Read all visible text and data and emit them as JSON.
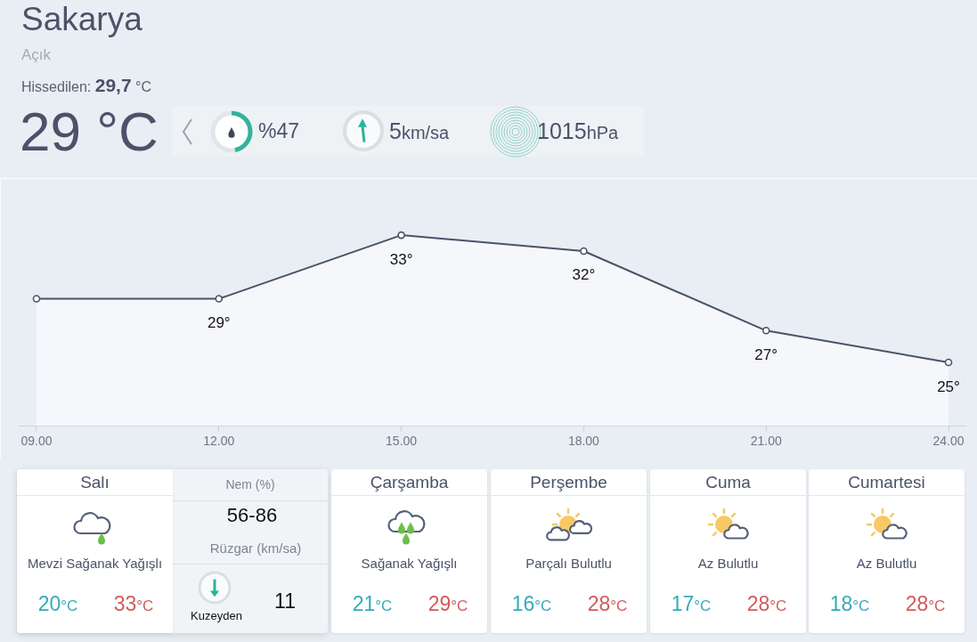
{
  "chart_data": [
    {
      "type": "other",
      "title": "Sakarya",
      "subtitle": "Açık",
      "annotations": [
        "Hissedilen:",
        "29,7",
        "°C",
        "29 °C",
        "%47",
        "5",
        "km/sa",
        "1015",
        "hPa"
      ]
    },
    {
      "type": "area",
      "x": [
        9,
        12,
        15,
        18,
        21,
        24
      ],
      "values": [
        29,
        29,
        33,
        32,
        27,
        25
      ],
      "color": "#4b5269",
      "marker": "circle",
      "value_labels": [
        null,
        "29°",
        "33°",
        "32°",
        "27°",
        "25°"
      ],
      "xlim": [
        8.7,
        24.3
      ],
      "xticks": [
        {
          "value": 9,
          "label": "09.00"
        },
        {
          "value": 12,
          "label": "12.00"
        },
        {
          "value": 15,
          "label": "15.00"
        },
        {
          "value": 18,
          "label": "18.00"
        },
        {
          "value": 21,
          "label": "21.00"
        },
        {
          "value": 24,
          "label": "24.00"
        }
      ],
      "ylim": [
        21,
        36
      ],
      "tick_labels": "x"
    },
    {
      "type": "other",
      "annotations": [
        "Salı",
        "Mevzi Sağanak Yağışlı",
        "20",
        "°C",
        "33",
        "°C",
        "Nem (%)",
        "56-86",
        "Rüzgar (km/sa)",
        "Kuzeyden",
        "11",
        "Çarşamba",
        "Sağanak Yağışlı",
        "21",
        "°C",
        "29",
        "°C",
        "Perşembe",
        "Parçalı Bulutlu",
        "16",
        "°C",
        "28",
        "°C",
        "Cuma",
        "Az Bulutlu",
        "17",
        "°C",
        "28",
        "°C",
        "Cumartesi",
        "Az Bulutlu",
        "18",
        "°C",
        "28",
        "°C"
      ]
    }
  ]
}
